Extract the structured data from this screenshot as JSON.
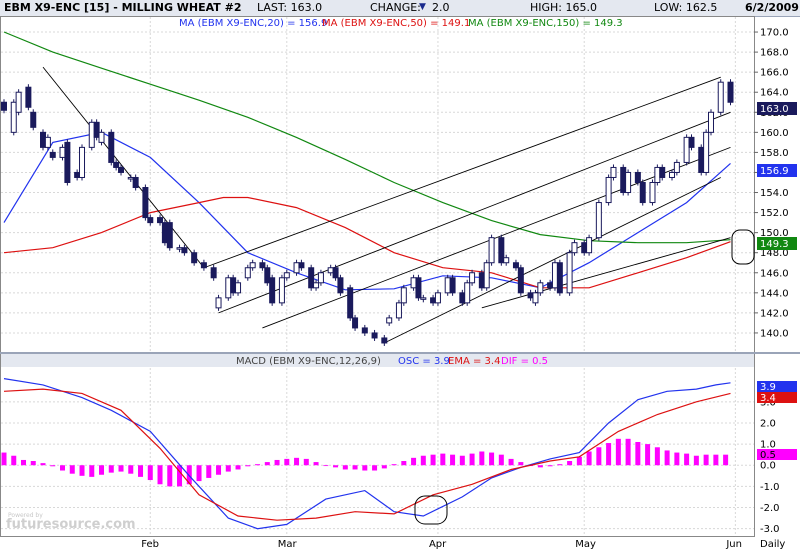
{
  "header": {
    "title": "EBM X9-ENC [15] - MILLING WHEAT #2",
    "last": "LAST: 163.0",
    "change_label": "CHANGE:",
    "change_arrow": "▼",
    "change_value": "2.0",
    "high": "HIGH: 165.0",
    "low": "LOW: 162.5",
    "date": "6/2/2009"
  },
  "indicators": {
    "ma20_text": "MA (EBM X9-ENC,20) = 156.9",
    "ma50_text": "MA (EBM X9-ENC,50) = 149.1",
    "ma150_text": "MA (EBM X9-ENC,150) = 149.3"
  },
  "macd": {
    "prefix": "MACD (EBM X9-ENC,12,26,9)",
    "osc_text": "OSC = 3.9",
    "ema_text": "EMA = 3.4",
    "dif_text": "DIF = 0.5"
  },
  "footer": {
    "daily": "Daily",
    "watermark_small": "Powered by",
    "watermark": "futuresource.com"
  },
  "colors": {
    "candle": "#1a1a5c",
    "ma20": "#2233ee",
    "ma50": "#dd1111",
    "ma150": "#118811",
    "histogram": "#ff00ff",
    "macd_line": "#2233ee",
    "signal_line": "#dd1111",
    "trend": "#000000"
  },
  "chart_data": [
    {
      "type": "candlestick",
      "title": "EBM X9-ENC [15] - MILLING WHEAT #2",
      "x_ticks": [
        {
          "label": "Feb",
          "x": 30
        },
        {
          "label": "Mar",
          "x": 58
        },
        {
          "label": "Apr",
          "x": 89
        },
        {
          "label": "May",
          "x": 119
        },
        {
          "label": "Jun",
          "x": 150
        }
      ],
      "x_range": [
        0,
        153
      ],
      "y_ticks": [
        140,
        142,
        144,
        146,
        148,
        150,
        152,
        154,
        156,
        158,
        160,
        162,
        164,
        166,
        168,
        170
      ],
      "y_range": [
        138,
        171.5
      ],
      "candles": [
        [
          0,
          163,
          162.2
        ],
        [
          2,
          160,
          163
        ],
        [
          3,
          162,
          164
        ],
        [
          5,
          164.5,
          162.5
        ],
        [
          6,
          162,
          160.5
        ],
        [
          8,
          160,
          158.5
        ],
        [
          9,
          158.5,
          159.5
        ],
        [
          10,
          158,
          157.5
        ],
        [
          12,
          157.5,
          158.5
        ],
        [
          13,
          159,
          155
        ],
        [
          15,
          156,
          155.5
        ],
        [
          16,
          155.5,
          158.5
        ],
        [
          18,
          158.5,
          161
        ],
        [
          19,
          161,
          159.5
        ],
        [
          20,
          159,
          160
        ],
        [
          22,
          160,
          157
        ],
        [
          23,
          157,
          156.5
        ],
        [
          24,
          156.5,
          156
        ],
        [
          26,
          155.5,
          155.5
        ],
        [
          27,
          155.5,
          154.5
        ],
        [
          29,
          154.5,
          151.5
        ],
        [
          30,
          151.5,
          151
        ],
        [
          32,
          151.5,
          151
        ],
        [
          33,
          151,
          149
        ],
        [
          34,
          151,
          148.5
        ],
        [
          36,
          148.5,
          148.5
        ],
        [
          37,
          148.5,
          148
        ],
        [
          39,
          148,
          147
        ],
        [
          41,
          147,
          146.5
        ],
        [
          43,
          146.5,
          145.5
        ],
        [
          44,
          142.5,
          143.5
        ],
        [
          46,
          143.5,
          145.5
        ],
        [
          47,
          145.5,
          144
        ],
        [
          48,
          144,
          145
        ],
        [
          50,
          145.5,
          146.5
        ],
        [
          51,
          146.5,
          147
        ],
        [
          53,
          147,
          146.5
        ],
        [
          54,
          146.5,
          145
        ],
        [
          55,
          145.5,
          143
        ],
        [
          57,
          143,
          145.5
        ],
        [
          58,
          145.5,
          146
        ],
        [
          60,
          146,
          147
        ],
        [
          61,
          147,
          146.5
        ],
        [
          63,
          146.5,
          144.5
        ],
        [
          64,
          144.5,
          145
        ],
        [
          65,
          145,
          146
        ],
        [
          67,
          146,
          146.5
        ],
        [
          68,
          146.5,
          145.5
        ],
        [
          69,
          145.5,
          144
        ],
        [
          71,
          144.5,
          141.5
        ],
        [
          72,
          141.5,
          140.5
        ],
        [
          74,
          140.5,
          140
        ],
        [
          76,
          140,
          139.5
        ],
        [
          78,
          139.5,
          139
        ],
        [
          79,
          141,
          141.5
        ],
        [
          81,
          141.5,
          143
        ],
        [
          82,
          143,
          144.5
        ],
        [
          84,
          144.5,
          145.5
        ],
        [
          85,
          145.5,
          143.5
        ],
        [
          86,
          143.5,
          143.5
        ],
        [
          88,
          143.5,
          143
        ],
        [
          89,
          143,
          144
        ],
        [
          91,
          144,
          145.5
        ],
        [
          92,
          145.5,
          144
        ],
        [
          94,
          144,
          143
        ],
        [
          95,
          143,
          145
        ],
        [
          96,
          145,
          146
        ],
        [
          98,
          146,
          144.5
        ],
        [
          99,
          144.5,
          147
        ],
        [
          100,
          147,
          149.5
        ],
        [
          102,
          149.5,
          147
        ],
        [
          103,
          147,
          147.5
        ],
        [
          105,
          147,
          146.5
        ],
        [
          106,
          146.5,
          144
        ],
        [
          108,
          144,
          143.5
        ],
        [
          109,
          143,
          144
        ],
        [
          110,
          144,
          145
        ],
        [
          112,
          145,
          144.5
        ],
        [
          113,
          144.5,
          147
        ],
        [
          114,
          147,
          144
        ],
        [
          116,
          144,
          148
        ],
        [
          117,
          148,
          149
        ],
        [
          119,
          149,
          148
        ],
        [
          120,
          148,
          149.5
        ],
        [
          122,
          149.5,
          153
        ],
        [
          124,
          153,
          155.5
        ],
        [
          125,
          155.5,
          156.5
        ],
        [
          127,
          156.5,
          154
        ],
        [
          128,
          154,
          156
        ],
        [
          130,
          156,
          155
        ],
        [
          131,
          155,
          153
        ],
        [
          133,
          153,
          155
        ],
        [
          134,
          155,
          156.5
        ],
        [
          135,
          156.5,
          155.5
        ],
        [
          137,
          155.5,
          156
        ],
        [
          138,
          156,
          157
        ],
        [
          140,
          157,
          159.5
        ],
        [
          141,
          159.5,
          158.5
        ],
        [
          143,
          158.5,
          156
        ],
        [
          144,
          156,
          160
        ],
        [
          145,
          160,
          162
        ],
        [
          147,
          162,
          165
        ],
        [
          149,
          165,
          163
        ]
      ]
    },
    {
      "type": "line",
      "series": [
        {
          "name": "MA (EBM X9-ENC,20)",
          "x": [
            0,
            10,
            20,
            30,
            40,
            50,
            60,
            70,
            80,
            90,
            100,
            110,
            120,
            130,
            140,
            149
          ],
          "values": [
            151,
            159,
            160,
            157.5,
            153,
            148,
            146,
            144.3,
            144.4,
            145.7,
            145.5,
            144.5,
            147,
            150,
            153,
            156.9
          ]
        },
        {
          "name": "MA (EBM X9-ENC,50)",
          "x": [
            0,
            10,
            20,
            30,
            40,
            45,
            50,
            60,
            70,
            80,
            90,
            100,
            110,
            120,
            130,
            140,
            149
          ],
          "values": [
            148,
            148.5,
            150,
            152,
            153,
            153.5,
            153.5,
            152.5,
            150.5,
            148,
            146.5,
            146,
            144.5,
            144.5,
            146,
            147.5,
            149.1
          ]
        },
        {
          "name": "MA (EBM X9-ENC,150)",
          "x": [
            0,
            10,
            20,
            30,
            40,
            50,
            60,
            70,
            80,
            90,
            100,
            110,
            120,
            130,
            140,
            149
          ],
          "values": [
            170,
            168,
            166.4,
            164.8,
            163.2,
            161.5,
            159.5,
            157.3,
            155,
            153,
            151.2,
            149.8,
            149.2,
            149,
            149,
            149.3
          ]
        }
      ],
      "trend_lines": [
        [
          [
            8,
            166.5
          ],
          [
            41,
            146.5
          ]
        ],
        [
          [
            41,
            146.5
          ],
          [
            147,
            165.5
          ]
        ],
        [
          [
            44,
            142
          ],
          [
            149,
            162
          ]
        ],
        [
          [
            53,
            140.5
          ],
          [
            149,
            158.5
          ]
        ],
        [
          [
            78,
            139
          ],
          [
            147,
            155.5
          ]
        ],
        [
          [
            98,
            142.5
          ],
          [
            149,
            149.5
          ]
        ]
      ]
    },
    {
      "type": "bar",
      "title": "MACD (EBM X9-ENC,12,26,9)",
      "y_ticks": [
        -3.0,
        -2.0,
        -1.0,
        0.0,
        1.0,
        2.0,
        3.0
      ],
      "y_range": [
        -3.3,
        4.6
      ],
      "histogram_x": [
        0,
        2,
        4,
        6,
        8,
        10,
        12,
        14,
        16,
        18,
        20,
        22,
        24,
        26,
        28,
        30,
        32,
        34,
        36,
        38,
        40,
        42,
        44,
        46,
        48,
        50,
        52,
        54,
        56,
        58,
        60,
        62,
        64,
        66,
        68,
        70,
        72,
        74,
        76,
        78,
        80,
        82,
        84,
        86,
        88,
        90,
        92,
        94,
        96,
        98,
        100,
        102,
        104,
        106,
        108,
        110,
        112,
        114,
        116,
        118,
        120,
        122,
        124,
        126,
        128,
        130,
        132,
        134,
        136,
        138,
        140,
        142,
        144,
        146,
        148
      ],
      "histogram": [
        0.6,
        0.45,
        0.25,
        0.2,
        0.1,
        -0.05,
        -0.25,
        -0.4,
        -0.5,
        -0.55,
        -0.45,
        -0.35,
        -0.3,
        -0.4,
        -0.55,
        -0.7,
        -0.9,
        -1.0,
        -1.0,
        -0.9,
        -0.75,
        -0.6,
        -0.45,
        -0.3,
        -0.2,
        -0.05,
        0.05,
        0.15,
        0.25,
        0.3,
        0.35,
        0.3,
        0.15,
        0.0,
        -0.1,
        -0.2,
        -0.2,
        -0.25,
        -0.25,
        -0.15,
        0.05,
        0.2,
        0.35,
        0.45,
        0.5,
        0.55,
        0.5,
        0.45,
        0.55,
        0.65,
        0.6,
        0.5,
        0.3,
        0.15,
        0.0,
        -0.1,
        -0.05,
        0.05,
        0.2,
        0.4,
        0.65,
        0.85,
        1.05,
        1.25,
        1.25,
        1.1,
        1.0,
        0.85,
        0.7,
        0.6,
        0.55,
        0.45,
        0.5,
        0.5,
        0.5
      ],
      "series": [
        {
          "name": "OSC",
          "x": [
            0,
            8,
            16,
            22,
            30,
            38,
            46,
            52,
            58,
            66,
            74,
            80,
            86,
            94,
            100,
            106,
            112,
            118,
            124,
            130,
            136,
            142,
            146,
            149
          ],
          "values": [
            4.1,
            3.8,
            3.2,
            2.6,
            1.6,
            -0.5,
            -2.5,
            -3.0,
            -2.8,
            -1.6,
            -1.2,
            -2.2,
            -2.4,
            -1.5,
            -0.6,
            -0.1,
            0.3,
            0.6,
            2.0,
            3.1,
            3.5,
            3.6,
            3.8,
            3.9
          ]
        },
        {
          "name": "EMA",
          "x": [
            0,
            8,
            16,
            24,
            32,
            40,
            48,
            56,
            64,
            72,
            80,
            88,
            96,
            104,
            112,
            118,
            126,
            134,
            142,
            149
          ],
          "values": [
            3.5,
            3.6,
            3.4,
            2.6,
            0.8,
            -1.4,
            -2.4,
            -2.6,
            -2.5,
            -2.2,
            -2.3,
            -1.4,
            -0.9,
            -0.2,
            0.2,
            0.4,
            1.6,
            2.4,
            3.0,
            3.4
          ]
        }
      ]
    }
  ]
}
